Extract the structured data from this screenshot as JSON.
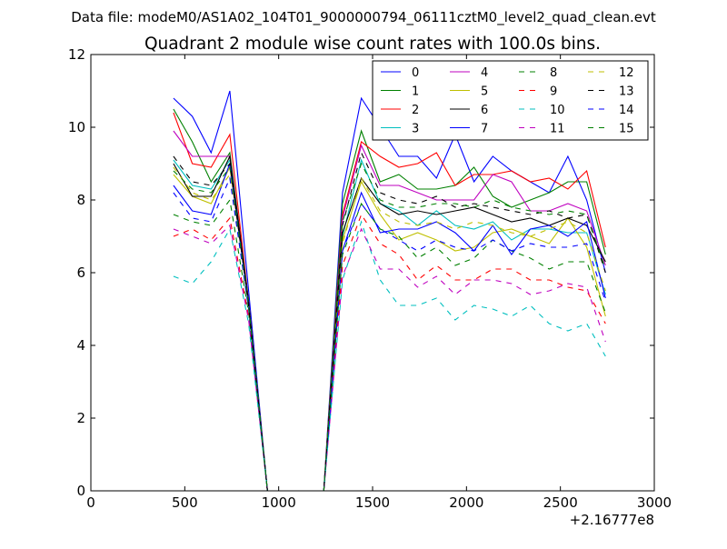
{
  "chart_data": {
    "type": "line",
    "suptitle": "Data file: modeM0/AS1A02_104T01_9000000794_06111cztM0_level2_quad_clean.evt",
    "title": "Quadrant 2 module wise count rates with 100.0s bins.",
    "xlabel": "",
    "ylabel": "",
    "xlim": [
      0,
      3000
    ],
    "ylim": [
      0,
      12
    ],
    "x_ticks": [
      0,
      500,
      1000,
      1500,
      2000,
      2500,
      3000
    ],
    "x_tick_labels": [
      "0",
      "500",
      "1000",
      "1500",
      "2000",
      "2500",
      "3000"
    ],
    "y_ticks": [
      0,
      2,
      4,
      6,
      8,
      10,
      12
    ],
    "y_tick_labels": [
      "0",
      "2",
      "4",
      "6",
      "8",
      "10",
      "12"
    ],
    "x_offset_label": "+2.16777e8",
    "legend_position": "top-right",
    "legend_columns": 4,
    "x": [
      440,
      540,
      640,
      740,
      840,
      940,
      1040,
      1140,
      1240,
      1340,
      1440,
      1540,
      1640,
      1740,
      1840,
      1940,
      2040,
      2140,
      2240,
      2340,
      2440,
      2540,
      2640,
      2740
    ],
    "series": [
      {
        "name": "0",
        "color": "#0000ff",
        "dash": "solid",
        "values": [
          10.8,
          10.3,
          9.3,
          11.0,
          5.5,
          0,
          0,
          0,
          0,
          8.2,
          10.8,
          10.0,
          9.2,
          9.2,
          8.6,
          9.8,
          8.5,
          9.2,
          8.8,
          8.5,
          8.2,
          9.2,
          8.0,
          6.0
        ]
      },
      {
        "name": "1",
        "color": "#008000",
        "dash": "solid",
        "values": [
          10.5,
          9.6,
          8.5,
          9.3,
          5.2,
          0,
          0,
          0,
          0,
          7.9,
          9.9,
          8.5,
          8.7,
          8.3,
          8.3,
          8.4,
          8.9,
          8.1,
          7.8,
          8.0,
          8.2,
          8.5,
          8.5,
          6.5
        ]
      },
      {
        "name": "2",
        "color": "#ff0000",
        "dash": "solid",
        "values": [
          10.4,
          9.0,
          8.9,
          9.8,
          5.2,
          0,
          0,
          0,
          0,
          7.6,
          9.6,
          9.2,
          8.9,
          9.0,
          9.3,
          8.4,
          8.7,
          8.7,
          8.8,
          8.5,
          8.6,
          8.3,
          8.8,
          6.7
        ]
      },
      {
        "name": "3",
        "color": "#00bfbf",
        "dash": "solid",
        "values": [
          9.1,
          8.4,
          8.3,
          9.1,
          5.2,
          0,
          0,
          0,
          0,
          7.0,
          9.1,
          7.9,
          7.7,
          7.3,
          7.7,
          7.3,
          7.2,
          7.4,
          6.9,
          7.2,
          7.2,
          7.1,
          7.1,
          5.4
        ]
      },
      {
        "name": "4",
        "color": "#bf00bf",
        "dash": "solid",
        "values": [
          9.9,
          9.2,
          9.2,
          9.2,
          5.2,
          0,
          0,
          0,
          0,
          7.5,
          9.5,
          8.4,
          8.4,
          8.2,
          8.0,
          8.0,
          8.0,
          8.7,
          8.5,
          7.7,
          7.7,
          7.9,
          7.7,
          6.2
        ]
      },
      {
        "name": "5",
        "color": "#bfbf00",
        "dash": "solid",
        "values": [
          8.7,
          8.1,
          7.9,
          8.9,
          5.2,
          0,
          0,
          0,
          0,
          6.9,
          8.5,
          7.6,
          6.9,
          7.1,
          6.9,
          6.6,
          6.7,
          7.1,
          7.2,
          7.0,
          6.8,
          7.5,
          6.7,
          4.8
        ]
      },
      {
        "name": "6",
        "color": "#000000",
        "dash": "solid",
        "values": [
          9.0,
          8.1,
          8.1,
          9.2,
          5.2,
          0,
          0,
          0,
          0,
          7.1,
          8.6,
          7.9,
          7.6,
          7.7,
          7.6,
          7.7,
          7.8,
          7.6,
          7.4,
          7.5,
          7.3,
          7.5,
          7.3,
          6.3
        ]
      },
      {
        "name": "7",
        "color": "#0000ff",
        "dash": "solid",
        "values": [
          8.4,
          7.7,
          7.6,
          9.0,
          5.1,
          0,
          0,
          0,
          0,
          6.6,
          8.2,
          7.1,
          7.2,
          7.2,
          7.4,
          7.1,
          6.6,
          7.3,
          6.5,
          7.2,
          7.3,
          7.0,
          7.4,
          5.3
        ]
      },
      {
        "name": "8",
        "color": "#008000",
        "dash": "dashed",
        "values": [
          7.6,
          7.4,
          7.3,
          8.0,
          4.9,
          0,
          0,
          0,
          0,
          6.5,
          7.9,
          7.2,
          7.0,
          6.4,
          6.7,
          6.2,
          6.4,
          6.9,
          6.6,
          6.4,
          6.1,
          6.3,
          6.3,
          4.9
        ]
      },
      {
        "name": "9",
        "color": "#ff0000",
        "dash": "dashed",
        "values": [
          7.0,
          7.2,
          6.9,
          7.5,
          4.8,
          0,
          0,
          0,
          0,
          6.2,
          7.6,
          6.8,
          6.5,
          5.8,
          6.2,
          5.8,
          5.8,
          6.1,
          6.1,
          5.8,
          5.8,
          5.6,
          5.5,
          4.6
        ]
      },
      {
        "name": "10",
        "color": "#00bfbf",
        "dash": "dashed",
        "values": [
          5.9,
          5.7,
          6.3,
          7.2,
          4.6,
          0,
          0,
          0,
          0,
          5.8,
          7.4,
          5.8,
          5.1,
          5.1,
          5.3,
          4.7,
          5.1,
          5.0,
          4.8,
          5.1,
          4.6,
          4.4,
          4.6,
          3.7
        ]
      },
      {
        "name": "11",
        "color": "#bf00bf",
        "dash": "dashed",
        "values": [
          7.2,
          7.0,
          6.8,
          7.3,
          4.7,
          0,
          0,
          0,
          0,
          5.9,
          7.2,
          6.1,
          6.1,
          5.6,
          5.9,
          5.4,
          5.8,
          5.8,
          5.7,
          5.4,
          5.5,
          5.7,
          5.6,
          4.1
        ]
      },
      {
        "name": "12",
        "color": "#bfbf00",
        "dash": "dashed",
        "values": [
          8.9,
          8.2,
          8.0,
          8.7,
          5.0,
          0,
          0,
          0,
          0,
          6.8,
          8.6,
          7.7,
          7.4,
          7.3,
          7.4,
          7.2,
          7.4,
          7.3,
          7.1,
          7.0,
          7.2,
          7.4,
          7.1,
          5.5
        ]
      },
      {
        "name": "13",
        "color": "#000000",
        "dash": "dashed",
        "values": [
          9.2,
          8.5,
          8.4,
          9.0,
          5.1,
          0,
          0,
          0,
          0,
          7.3,
          9.3,
          8.2,
          8.0,
          7.9,
          8.1,
          7.8,
          7.9,
          7.8,
          7.7,
          7.6,
          7.7,
          7.5,
          7.6,
          6.0
        ]
      },
      {
        "name": "14",
        "color": "#0000ff",
        "dash": "dashed",
        "values": [
          8.2,
          7.5,
          7.4,
          8.6,
          5.0,
          0,
          0,
          0,
          0,
          6.6,
          7.9,
          7.2,
          6.9,
          6.6,
          6.9,
          6.7,
          6.6,
          6.9,
          6.6,
          6.8,
          6.7,
          6.7,
          6.8,
          5.2
        ]
      },
      {
        "name": "15",
        "color": "#008000",
        "dash": "dashed",
        "values": [
          8.8,
          8.3,
          8.2,
          8.9,
          5.1,
          0,
          0,
          0,
          0,
          7.4,
          9.0,
          8.0,
          7.8,
          7.8,
          7.9,
          7.9,
          7.8,
          8.0,
          7.8,
          7.7,
          7.6,
          7.7,
          7.6,
          6.1
        ]
      }
    ]
  }
}
